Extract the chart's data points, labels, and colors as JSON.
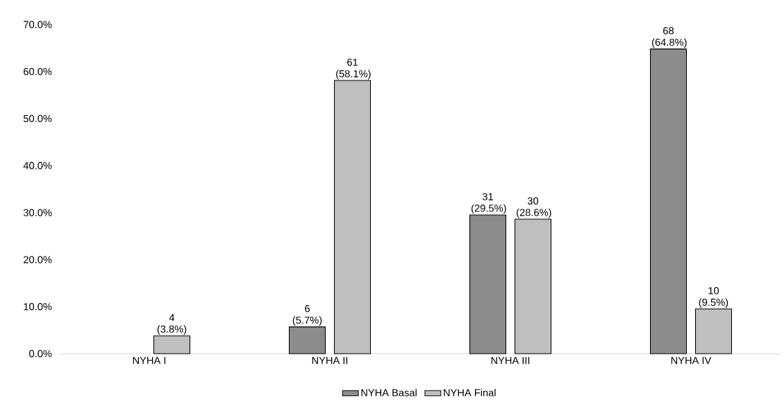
{
  "chart_data": {
    "type": "bar",
    "categories": [
      "NYHA I",
      "NYHA II",
      "NYHA III",
      "NYHA IV"
    ],
    "series": [
      {
        "name": "NYHA Basal",
        "color": "#8c8c8c",
        "values": [
          null,
          5.7,
          29.5,
          64.8
        ],
        "value_labels": [
          null,
          "6 (5.7%)",
          "31 (29.5%)",
          "68 (64.8%)"
        ]
      },
      {
        "name": "NYHA Final",
        "color": "#bfbfbf",
        "values": [
          3.8,
          58.1,
          28.6,
          9.5
        ],
        "value_labels": [
          "4 (3.8%)",
          "61 (58.1%)",
          "30 (28.6%)",
          "10 (9.5%)"
        ]
      }
    ],
    "ylim": [
      0,
      70
    ],
    "yticks": [
      {
        "value": 0,
        "label": "0.0%"
      },
      {
        "value": 10,
        "label": "10.0%"
      },
      {
        "value": 20,
        "label": "20.0%"
      },
      {
        "value": 30,
        "label": "30.0%"
      },
      {
        "value": 40,
        "label": "40.0%"
      },
      {
        "value": 50,
        "label": "50.0%"
      },
      {
        "value": 60,
        "label": "60.0%"
      },
      {
        "value": 70,
        "label": "70.0%"
      }
    ],
    "legend": "bottom"
  }
}
